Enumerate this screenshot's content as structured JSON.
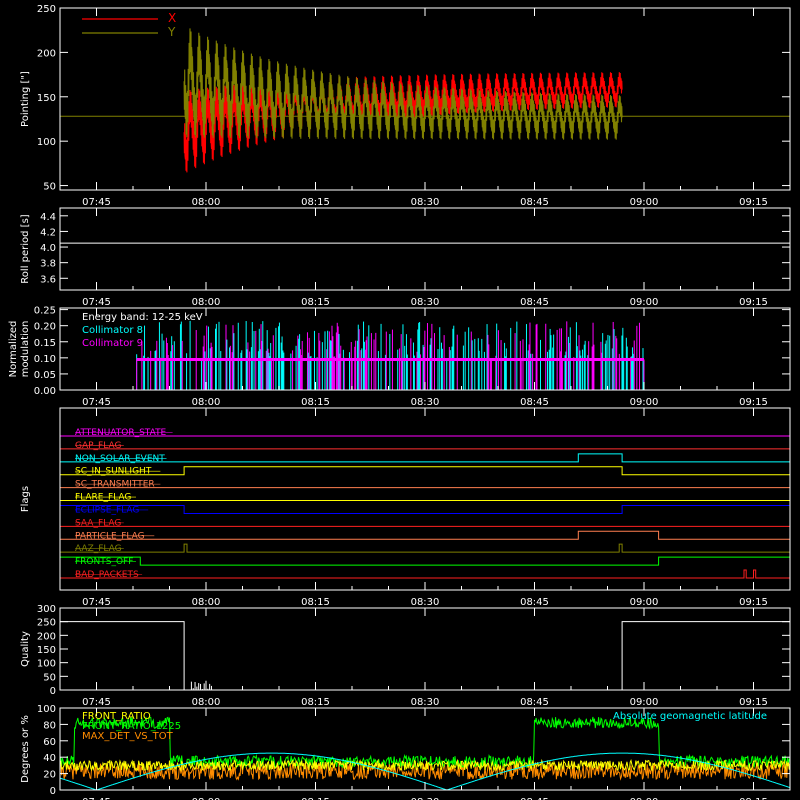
{
  "colors": {
    "background": "#000000",
    "axes": "#ffffff",
    "x_pointing": "#ff0000",
    "y_pointing": "#808000",
    "collimator_8": "#00ffff",
    "collimator_9": "#ff00ff",
    "front_ratio": "#ffff00",
    "front_ratio_1225": "#00ff00",
    "max_det_vs_tot": "#ff8c00",
    "geomag_lat": "#00ffff"
  },
  "time_axis": {
    "unit": "minutes",
    "range": [
      460,
      560
    ],
    "tick_minutes": [
      465,
      480,
      495,
      510,
      525,
      540,
      555
    ],
    "tick_labels": [
      "07:45",
      "08:00",
      "08:15",
      "08:30",
      "08:45",
      "09:00",
      "09:15"
    ]
  },
  "chart_data": [
    {
      "type": "line",
      "ylabel": "Pointing [\"]",
      "ylim": [
        45,
        250
      ],
      "yticks": [
        50,
        100,
        150,
        200,
        250
      ],
      "legend": "top-left",
      "baseline": 128,
      "active_range": [
        477,
        537
      ],
      "series": [
        {
          "name": "X",
          "color": "red",
          "start_low": 60,
          "start_high": 160,
          "end_low": 140,
          "end_high": 180,
          "oscillation_period_min": 1.2
        },
        {
          "name": "Y",
          "color": "olive",
          "start_low": 100,
          "start_high": 235,
          "end_low": 100,
          "end_high": 150,
          "oscillation_period_min": 1.2
        }
      ]
    },
    {
      "type": "line",
      "ylabel": "Roll period [s]",
      "ylim": [
        3.45,
        4.5
      ],
      "yticks": [
        3.6,
        3.8,
        4.0,
        4.2,
        4.4
      ],
      "ytick_labels": [
        "3.6",
        "3.8",
        "4.0",
        "4.2",
        "4.4"
      ],
      "series": [
        {
          "name": "",
          "value": 4.05
        }
      ]
    },
    {
      "type": "bar",
      "ylabel": [
        "Normalized",
        "modulation"
      ],
      "ylim": [
        0,
        0.255
      ],
      "yticks": [
        0,
        0.05,
        0.1,
        0.15,
        0.2,
        0.25
      ],
      "ytick_labels": [
        "0.00",
        "0.05",
        "0.10",
        "0.15",
        "0.20",
        "0.25"
      ],
      "annotation": "Energy band: 12-25 keV",
      "active_range": [
        470.5,
        558
      ],
      "baseline": 0.095,
      "series": [
        {
          "name": "Collimator 8"
        },
        {
          "name": "Collimator 9"
        }
      ]
    },
    {
      "type": "line",
      "ylabel": "Flags",
      "flags": [
        {
          "name": "ATTENUATOR_STATE",
          "color": "#ff00ff",
          "segments": []
        },
        {
          "name": "GAP_FLAG",
          "color": "#ff3030",
          "segments": []
        },
        {
          "name": "NON_SOLAR_EVENT",
          "color": "#00ffff",
          "segments": [
            [
              531,
              537
            ]
          ]
        },
        {
          "name": "SC_IN_SUNLIGHT",
          "color": "#ffff00",
          "segments": [
            [
              477,
              537
            ]
          ]
        },
        {
          "name": "SC_TRANSMITTER",
          "color": "#ff7f50",
          "segments": []
        },
        {
          "name": "FLARE_FLAG",
          "color": "#ffff00",
          "segments": []
        },
        {
          "name": "ECLIPSE_FLAG",
          "color": "#0000ff",
          "segments": [
            [
              460,
              477
            ],
            [
              537,
              560
            ]
          ]
        },
        {
          "name": "SAA_FLAG",
          "color": "#ff2020",
          "segments": []
        },
        {
          "name": "PARTICLE_FLAG",
          "color": "#ff7f50",
          "segments": [
            [
              531,
              542
            ]
          ]
        },
        {
          "name": "AAZ_FLAG",
          "color": "#808000",
          "segments": [
            [
              477,
              477.4
            ],
            [
              536.6,
              537
            ]
          ]
        },
        {
          "name": "FRONTS_OFF",
          "color": "#00ff00",
          "segments": [
            [
              460,
              471
            ],
            [
              542,
              560
            ]
          ]
        },
        {
          "name": "BAD_PACKETS",
          "color": "#ff2020",
          "segments": [
            [
              553.7,
              554
            ],
            [
              555,
              555.3
            ]
          ]
        }
      ]
    },
    {
      "type": "line",
      "ylabel": "Quality",
      "ylim": [
        0,
        300
      ],
      "yticks": [
        0,
        50,
        100,
        150,
        200,
        250,
        300
      ],
      "series": [
        {
          "name": "",
          "high": 250,
          "high_ranges": [
            [
              460,
              477
            ],
            [
              537,
              560
            ]
          ],
          "low": 0
        }
      ]
    },
    {
      "type": "line",
      "ylabel": "Degrees or %",
      "ylim": [
        0,
        100
      ],
      "yticks": [
        0,
        20,
        40,
        60,
        80,
        100
      ],
      "legend": "top-left",
      "annotation_right": "Absolute geomagnetic latitude",
      "series": [
        {
          "name": "FRONT_RATIO",
          "color": "yellow",
          "mean": 30,
          "noise": 6
        },
        {
          "name": "FRONT_RATIO_1225",
          "color": "green",
          "high": 82,
          "high_ranges": [
            [
              462,
              475
            ],
            [
              525,
              542
            ]
          ],
          "low": 35
        },
        {
          "name": "MAX_DET_VS_TOT",
          "color": "orange",
          "mean": 23,
          "noise": 10
        },
        {
          "name": "Absolute geomagnetic latitude",
          "color": "cyan",
          "min": 0,
          "max": 45,
          "period_min": 48
        }
      ]
    }
  ]
}
